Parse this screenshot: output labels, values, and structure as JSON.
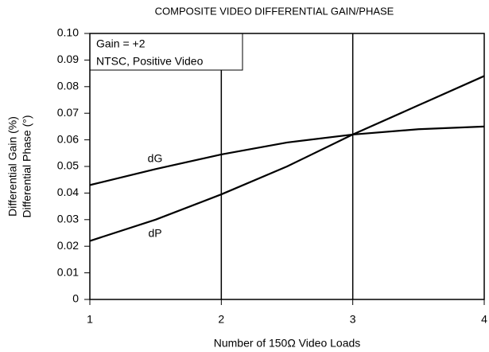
{
  "chart_data": {
    "type": "line",
    "title": "COMPOSITE VIDEO DIFFERENTIAL GAIN/PHASE",
    "x_label": "Number of 150Ω Video Loads",
    "y_label": [
      "Differential Gain (%)",
      "Differential Phase (°)"
    ],
    "annotations": [
      "Gain = +2",
      "NTSC, Positive Video"
    ],
    "x": [
      1,
      1.5,
      2,
      2.5,
      3,
      3.5,
      4
    ],
    "series": [
      {
        "name": "dG",
        "color": "#000000",
        "values": [
          0.043,
          0.049,
          0.0545,
          0.059,
          0.062,
          0.064,
          0.065
        ]
      },
      {
        "name": "dP",
        "color": "#000000",
        "values": [
          0.022,
          0.03,
          0.0395,
          0.05,
          0.062,
          0.073,
          0.084
        ]
      }
    ],
    "xlim": [
      1,
      4
    ],
    "xticks": [
      1,
      2,
      3,
      4
    ],
    "ylim": [
      0,
      0.1
    ],
    "yticks": [
      0,
      0.01,
      0.02,
      0.03,
      0.04,
      0.05,
      0.06,
      0.07,
      0.08,
      0.09,
      {
        "value": 0.1,
        "label": "0.10"
      }
    ],
    "grid": "x"
  }
}
